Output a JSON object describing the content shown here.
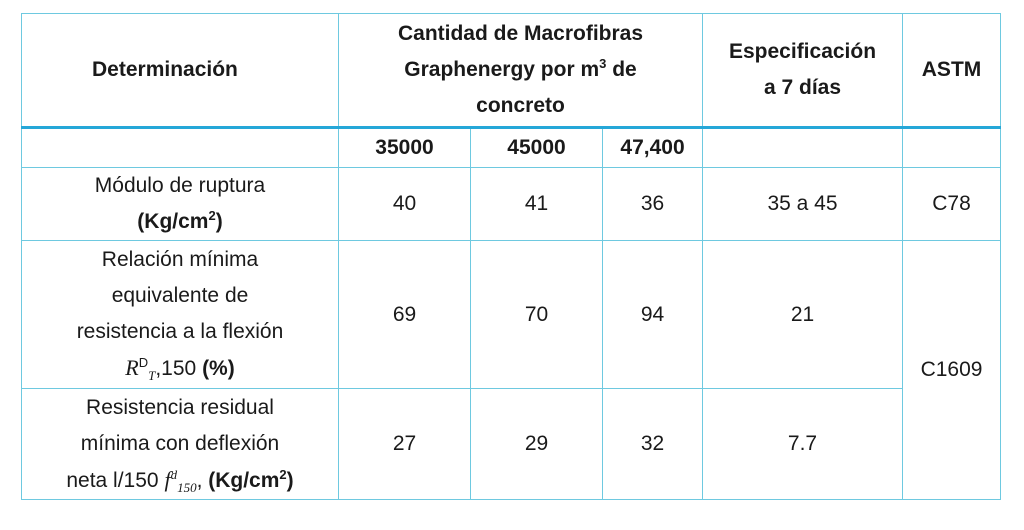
{
  "header": {
    "determinacion": "Determinación",
    "cantidad_line1": "Cantidad de Macrofibras",
    "cantidad_line2a": "Graphenergy por m",
    "cantidad_sup": "3",
    "cantidad_line2b": " de",
    "cantidad_line3": "concreto",
    "especificacion_line1": "Especificación",
    "especificacion_line2": "a 7 días",
    "astm": "ASTM"
  },
  "subheader": {
    "c1": "35000",
    "c2": "45000",
    "c3": "47,400"
  },
  "rows": [
    {
      "label_line1": "Módulo de ruptura",
      "unit_a": "(Kg/cm",
      "unit_sup": "2",
      "unit_b": ")",
      "v1": "40",
      "v2": "41",
      "v3": "36",
      "spec": "35 a 45",
      "astm": "C78"
    },
    {
      "label_line1": "Relación mínima",
      "label_line2": "equivalente de",
      "label_line3": "resistencia a la flexión",
      "sym_R": "R",
      "sym_sup": "D",
      "sym_sub": "T",
      "sym_rest": ",150 ",
      "unit": "(%)",
      "v1": "69",
      "v2": "70",
      "v3": "94",
      "spec": "21",
      "astm": "C1609"
    },
    {
      "label_line1": "Resistencia residual",
      "label_line2": "mínima con deflexión",
      "label_line3": "neta l/150 ",
      "sym_f": "f",
      "sym_sup": "d",
      "sym_sub": "150",
      "sym_rest": ", ",
      "unit_a": "(Kg/cm",
      "unit_sup": "2",
      "unit_b": ")",
      "v1": "27",
      "v2": "29",
      "v3": "32",
      "spec": "7.7"
    }
  ]
}
